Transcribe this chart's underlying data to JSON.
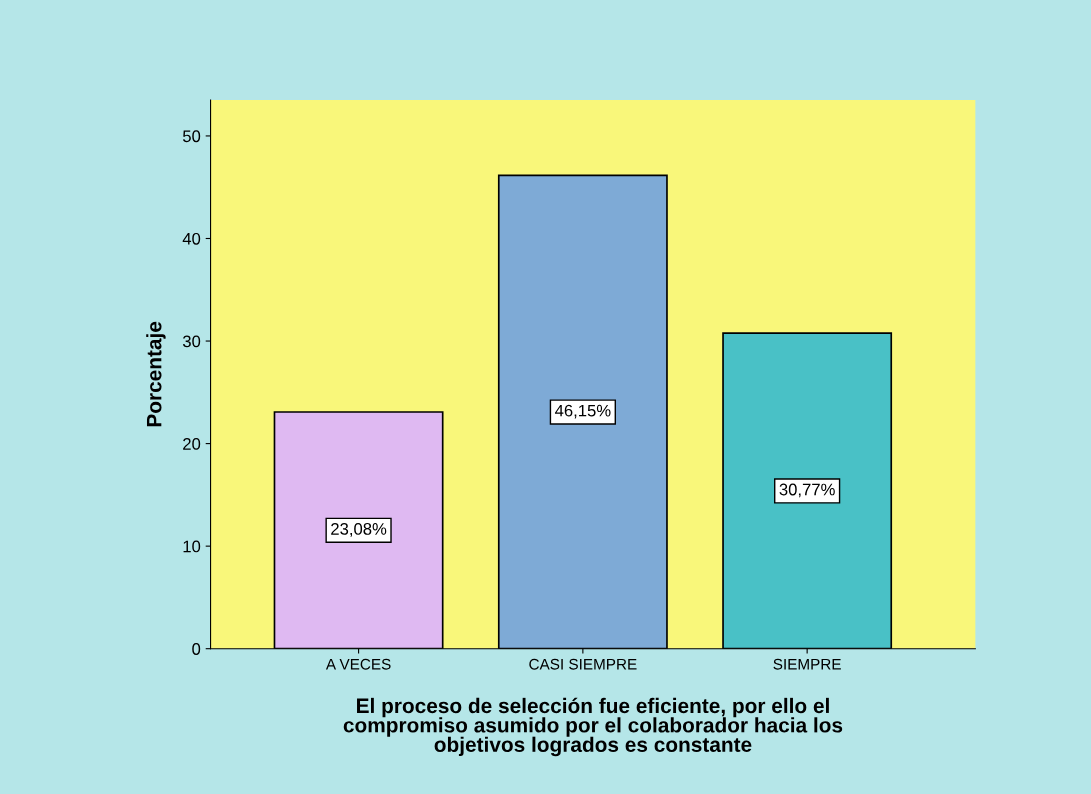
{
  "chart_data": {
    "type": "bar",
    "xlabel": "El proceso de selección fue eficiente, por ello el\ncompromiso asumido por el colaborador hacia los\nobjetivos logrados es constante",
    "ylabel": "Porcentaje",
    "categories": [
      "A VECES",
      "CASI SIEMPRE",
      "SIEMPRE"
    ],
    "values": [
      23.08,
      46.15,
      30.77
    ],
    "colors": [
      "#dfb9f2",
      "#7eaad6",
      "#49c1c6"
    ],
    "value_labels": [
      "23,08%",
      "46,15%",
      "30,77%"
    ],
    "ylim": [
      0,
      53.5
    ],
    "yticks": [
      0,
      10,
      20,
      30,
      40,
      50
    ],
    "grid": false,
    "legend": false
  }
}
